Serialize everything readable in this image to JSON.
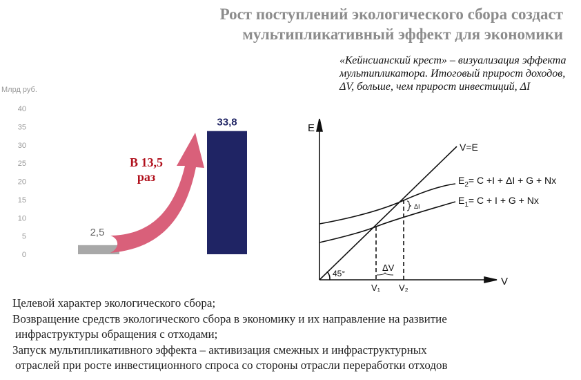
{
  "title": {
    "line1": "Рост поступлений экологического сбора создаст",
    "line2": "мультипликативный эффект для экономики"
  },
  "caption": "«Кейнсианский крест» – визуализация эффекта мультипликатора. Итоговый прирост доходов, ΔV, больше, чем прирост инвестиций, ΔI",
  "chart_data": {
    "type": "bar",
    "ylabel": "Млрд руб.",
    "ylim": [
      0,
      40
    ],
    "yticks": [
      0,
      5,
      10,
      15,
      20,
      25,
      30,
      35,
      40
    ],
    "values": [
      2.5,
      33.8
    ],
    "value_labels": [
      "2,5",
      "33,8"
    ],
    "colors": [
      "#a8a8a8",
      "#1f2464"
    ],
    "annotation": {
      "line1": "В 13,5",
      "line2": "раз",
      "color": "#b0101c",
      "arrow_color": "#d9607a"
    }
  },
  "diagram": {
    "y_axis": "E",
    "x_axis": "V",
    "line_ve": "V=E",
    "e2_label": "E",
    "e2_sub": "2",
    "e2_formula": "= C +I + ΔI + G + Nx",
    "e1_label": "E",
    "e1_sub": "1",
    "e1_formula": "= C + I + G + Nx",
    "delta_i": "ΔI",
    "delta_v": "ΔV",
    "angle": "45°",
    "v1": "V₁",
    "v2": "V₂"
  },
  "bullets": [
    "Целевой характер экологического сбора;",
    "Возвращение средств экологического сбора в экономику и их направление на развитие",
    "инфраструктуры обращения с отходами;",
    "Запуск мультипликативного эффекта – активизация смежных и инфраструктурных",
    "отраслей при росте инвестиционного спроса со стороны отрасли переработки отходов"
  ]
}
